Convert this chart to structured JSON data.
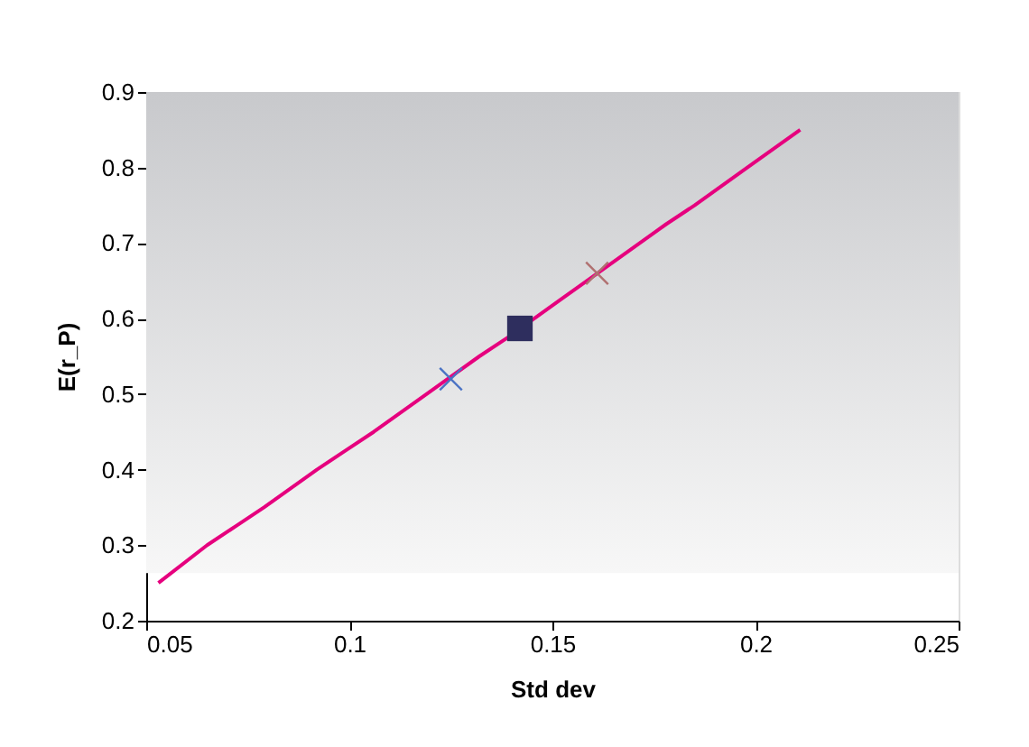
{
  "chart_data": {
    "type": "line",
    "xlabel": "Std dev",
    "ylabel": "E(r_P)",
    "xlim": [
      0.05,
      0.25
    ],
    "xticks": [
      0.05,
      0.1,
      0.15,
      0.2,
      0.25
    ],
    "ylim": [
      0.2,
      0.9
    ],
    "yticks": [
      0.2,
      0.3,
      0.4,
      0.5,
      0.6,
      0.7,
      0.8,
      0.9
    ],
    "grid": false,
    "series": [
      {
        "color": "#e6007e",
        "marker": "none",
        "line_style": "solid",
        "x": [
          0.053,
          0.065,
          0.072,
          0.079,
          0.092,
          0.099,
          0.106,
          0.119,
          0.132,
          0.139,
          0.152,
          0.165,
          0.178,
          0.185,
          0.198,
          0.211
        ],
        "values": [
          0.25,
          0.3,
          0.325,
          0.35,
          0.4,
          0.425,
          0.45,
          0.5,
          0.55,
          0.575,
          0.625,
          0.675,
          0.725,
          0.75,
          0.8,
          0.85
        ]
      },
      {
        "type": "scatter",
        "color": "#4a72c4",
        "marker": "cross",
        "x": [
          0.125
        ],
        "values": [
          0.52
        ]
      },
      {
        "type": "scatter",
        "color": "#2e2e5e",
        "marker": "square",
        "x": [
          0.142
        ],
        "values": [
          0.587
        ]
      },
      {
        "type": "scatter",
        "color": "#b07070",
        "marker": "cross",
        "x": [
          0.161
        ],
        "values": [
          0.66
        ]
      }
    ]
  }
}
